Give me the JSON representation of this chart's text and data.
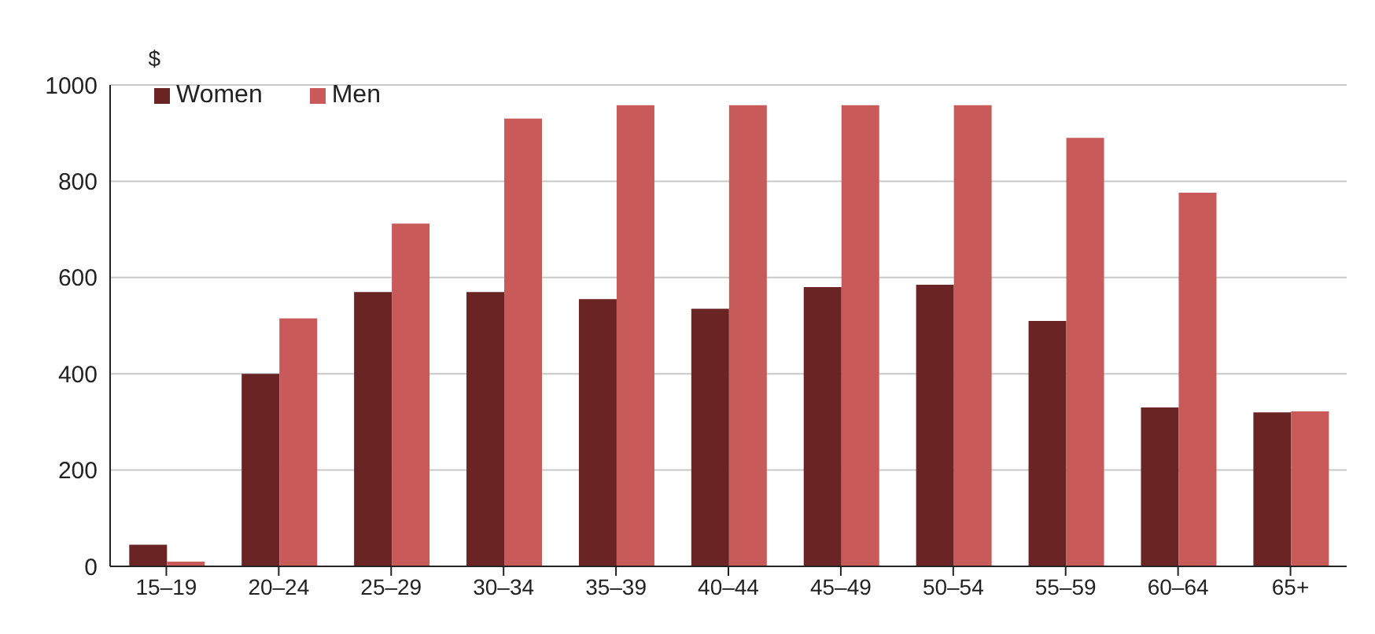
{
  "chart_data": {
    "type": "bar",
    "ylabel": "$",
    "categories": [
      "15–19",
      "20–24",
      "25–29",
      "30–34",
      "35–39",
      "40–44",
      "45–49",
      "50–54",
      "55–59",
      "60–64",
      "65+"
    ],
    "series": [
      {
        "name": "Women",
        "color": "#6b2424",
        "values": [
          45,
          400,
          570,
          570,
          555,
          535,
          580,
          585,
          510,
          330,
          320
        ]
      },
      {
        "name": "Men",
        "color": "#c85a5a",
        "values": [
          10,
          515,
          712,
          930,
          958,
          958,
          958,
          958,
          890,
          776,
          322
        ]
      }
    ],
    "ylim": [
      0,
      1000
    ],
    "yticks": [
      0,
      200,
      400,
      600,
      800,
      1000
    ],
    "grid": "y",
    "legend": "top left"
  }
}
